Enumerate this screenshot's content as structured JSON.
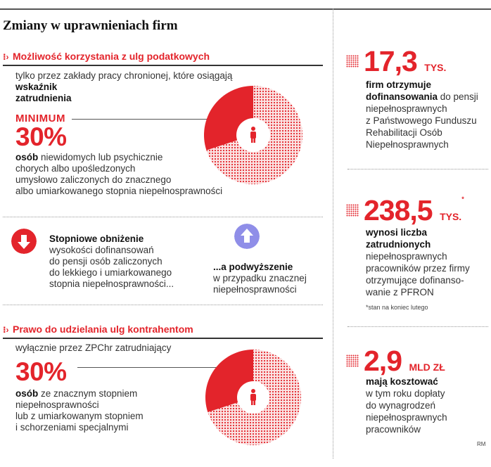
{
  "title": "Zmiany w uprawnieniach firm",
  "colors": {
    "accent": "#e3242b",
    "arrow_up": "#8f8ee8",
    "text": "#333333"
  },
  "section1": {
    "heading": "Możliwość korzystania z ulg podatkowych",
    "intro_line1": "tylko przez zakłady pracy chronionej, które osiągają",
    "intro_line2": "wskaźnik",
    "intro_line3": "zatrudnienia",
    "minimum_label": "MINIMUM",
    "percent": "30%",
    "desc_bold": "osób",
    "desc_line1": " niewidomych lub psychicznie",
    "desc_line2": "chorych albo upośledzonych",
    "desc_line3": "umysłowo zaliczonych do znacznego",
    "desc_line4": "albo umiarkowanego stopnia niepełnosprawności",
    "pie_share": 0.3,
    "pie_icon": "person-icon"
  },
  "changes": {
    "down_icon": "arrow-down-icon",
    "down_title": "Stopniowe obniżenie",
    "down_line1": "wysokości dofinansowań",
    "down_line2": "do pensji osób zaliczonych",
    "down_line3": "do lekkiego i umiarkowanego",
    "down_line4": "stopnia niepełnosprawności...",
    "up_icon": "arrow-up-icon",
    "up_title": "...a podwyższenie",
    "up_line1": "w przypadku znacznej",
    "up_line2": "niepełnosprawności"
  },
  "section2": {
    "heading": "Prawo do udzielania ulg kontrahentom",
    "intro": "wyłącznie przez ZPChr zatrudniający",
    "percent": "30%",
    "desc_bold": "osób",
    "desc_line1": " ze znacznym stopniem",
    "desc_line2": "niepełnosprawności",
    "desc_line3": "lub z umiarkowanym stopniem",
    "desc_line4": "i schorzeniami specjalnymi",
    "pie_share": 0.3,
    "pie_icon": "person-icon"
  },
  "stats": [
    {
      "number": "17,3",
      "unit": "TYS.",
      "marker": "",
      "bold1": "firm otrzymuje",
      "bold2": "dofinansowania",
      "rest2": " do pensji",
      "line3": "niepełnosprawnych",
      "line4": "z Państwowego Funduszu",
      "line5": "Rehabilitacji Osób",
      "line6": "Niepełnosprawnych"
    },
    {
      "number": "238,5",
      "unit": "TYS.",
      "marker": "*",
      "bold1": "wynosi liczba",
      "bold2": "zatrudnionych",
      "rest2": "",
      "line3": "niepełnosprawnych",
      "line4": "pracowników przez firmy",
      "line5": "otrzymujące dofinanso-",
      "line6": "wanie z PFRON"
    },
    {
      "number": "2,9",
      "unit": "MLD ZŁ",
      "marker": "",
      "bold1": "mają kosztować",
      "bold2": "",
      "rest2": "w tym roku dopłaty",
      "line3": "do wynagrodzeń",
      "line4": "niepełnosprawnych",
      "line5": "pracowników",
      "line6": ""
    }
  ],
  "footnote": "*stan na koniec lutego",
  "credit": "RM"
}
